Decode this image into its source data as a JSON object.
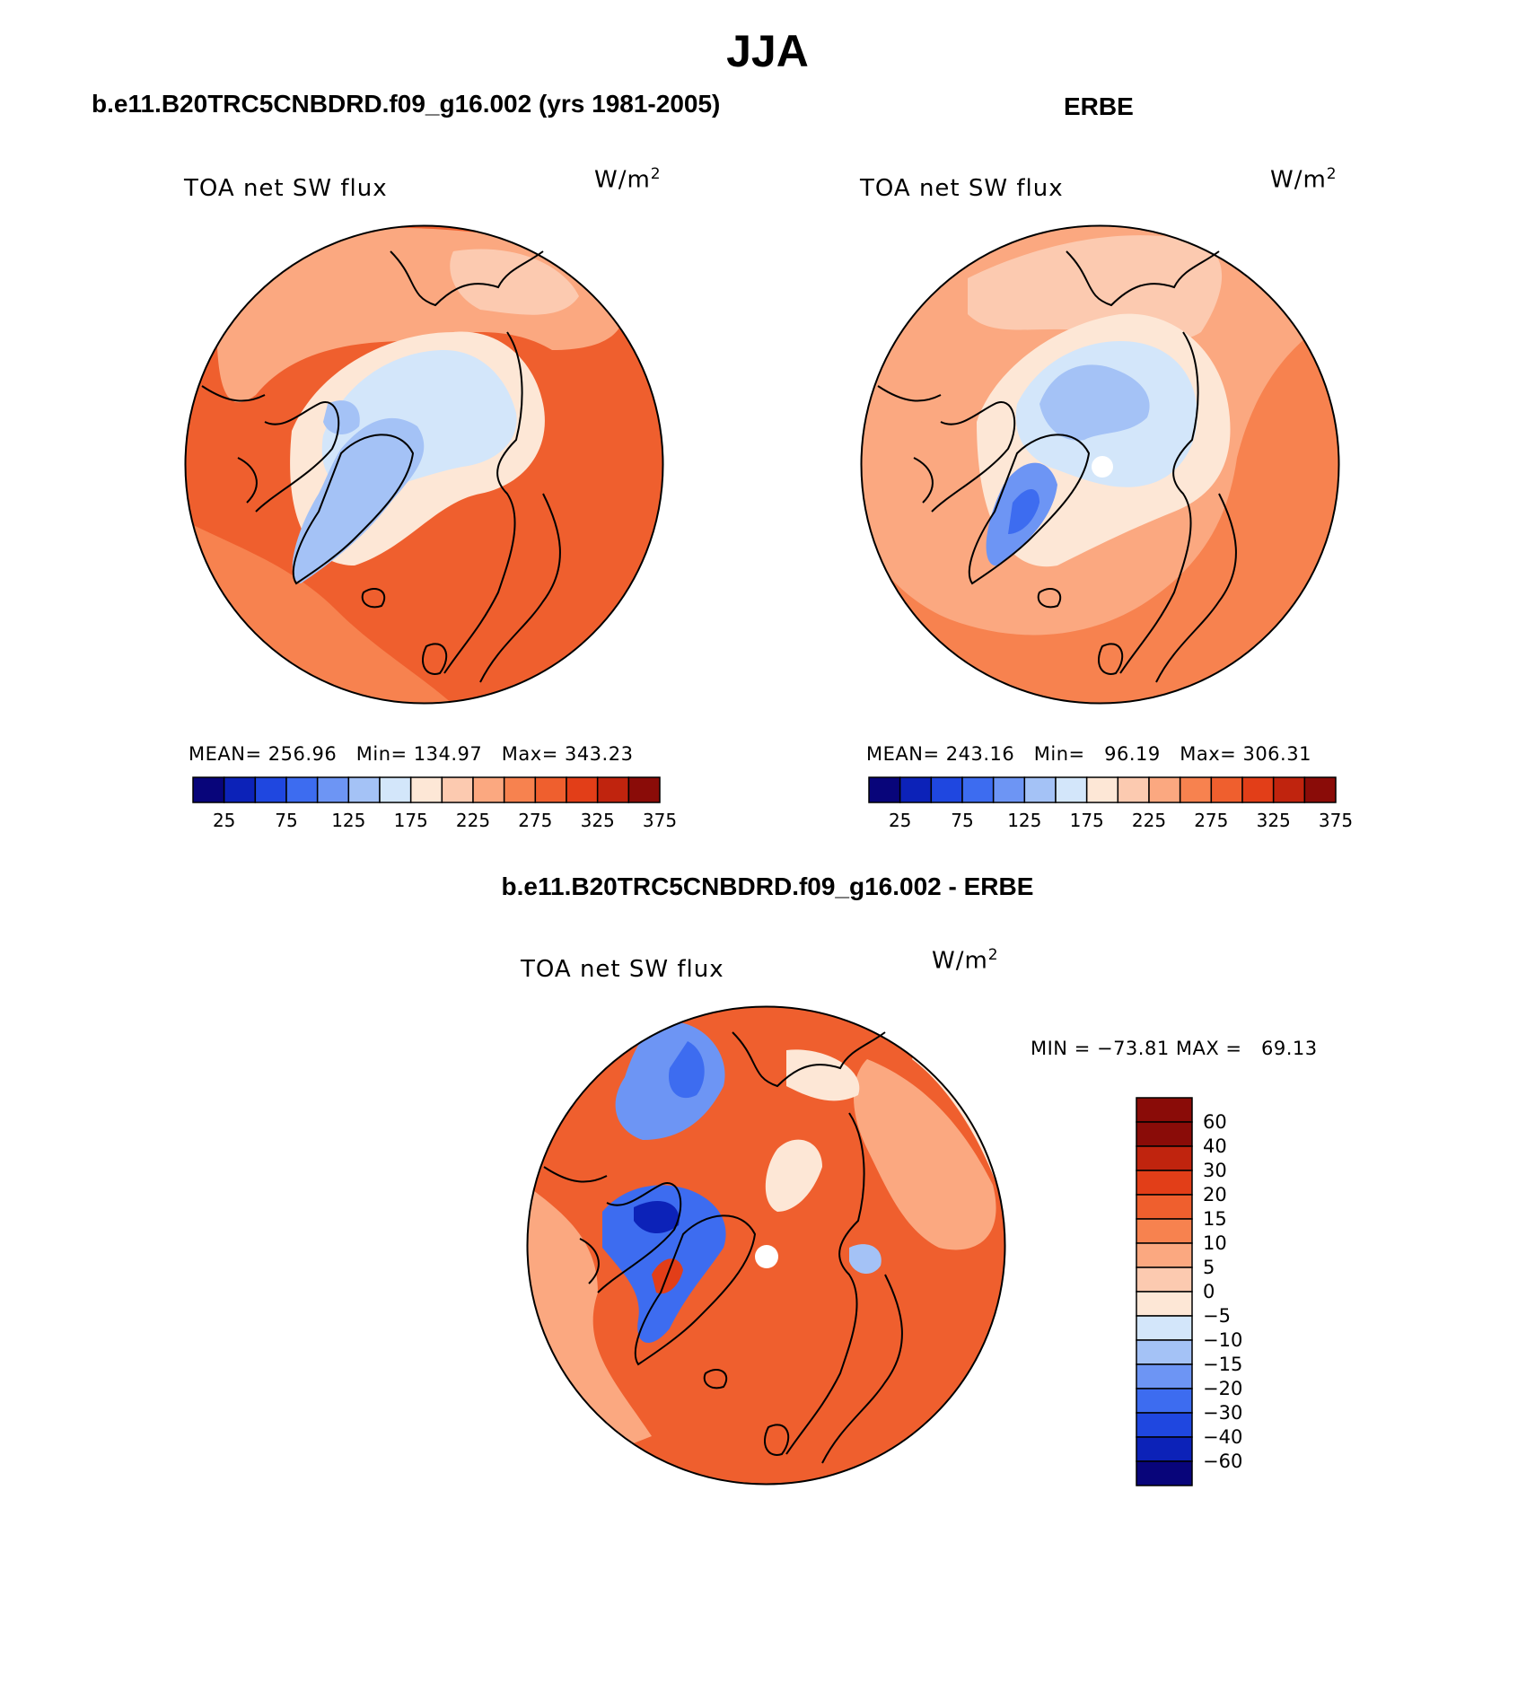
{
  "title": "JJA",
  "panels": [
    {
      "id": "model",
      "header": "b.e11.B20TRC5CNBDRD.f09_g16.002 (yrs 1981-2005)",
      "field": "TOA net SW flux",
      "units_base": "W/m",
      "units_exp": "2",
      "stats_line": "MEAN= 256.96   Min= 134.97   Max= 343.23",
      "colorbar_ticks": [
        "25",
        "75",
        "125",
        "175",
        "225",
        "275",
        "325",
        "375"
      ]
    },
    {
      "id": "obs",
      "header": "ERBE",
      "field": "TOA net SW flux",
      "units_base": "W/m",
      "units_exp": "2",
      "stats_line": "MEAN= 243.16   Min=   96.19   Max= 306.31",
      "colorbar_ticks": [
        "25",
        "75",
        "125",
        "175",
        "225",
        "275",
        "325",
        "375"
      ]
    },
    {
      "id": "diff",
      "header": "b.e11.B20TRC5CNBDRD.f09_g16.002 - ERBE",
      "field": "TOA net SW flux",
      "units_base": "W/m",
      "units_exp": "2",
      "stats_line": "MIN = −73.81 MAX =   69.13",
      "colorbar_ticks": [
        "60",
        "40",
        "30",
        "20",
        "15",
        "10",
        "5",
        "0",
        "−5",
        "−10",
        "−15",
        "−20",
        "−30",
        "−40",
        "−60"
      ]
    }
  ],
  "abs_scale_colors": [
    "#08057a",
    "#0c22b8",
    "#1f47e0",
    "#3d6cf0",
    "#6d95f4",
    "#a4c2f6",
    "#d3e6fa",
    "#fde7d6",
    "#fccab0",
    "#fba880",
    "#f7824f",
    "#ef5f2e",
    "#e23e18",
    "#c0240e",
    "#8a0c08"
  ],
  "diff_scale_colors": [
    "#08057a",
    "#0c22b8",
    "#1f47e0",
    "#3d6cf0",
    "#6d95f4",
    "#a4c2f6",
    "#d3e6fa",
    "#fde7d6",
    "#fccab0",
    "#fba880",
    "#f7824f",
    "#ef5f2e",
    "#e23e18",
    "#c0240e",
    "#8a0c08"
  ],
  "projection": "polar stereographic, north pole"
}
